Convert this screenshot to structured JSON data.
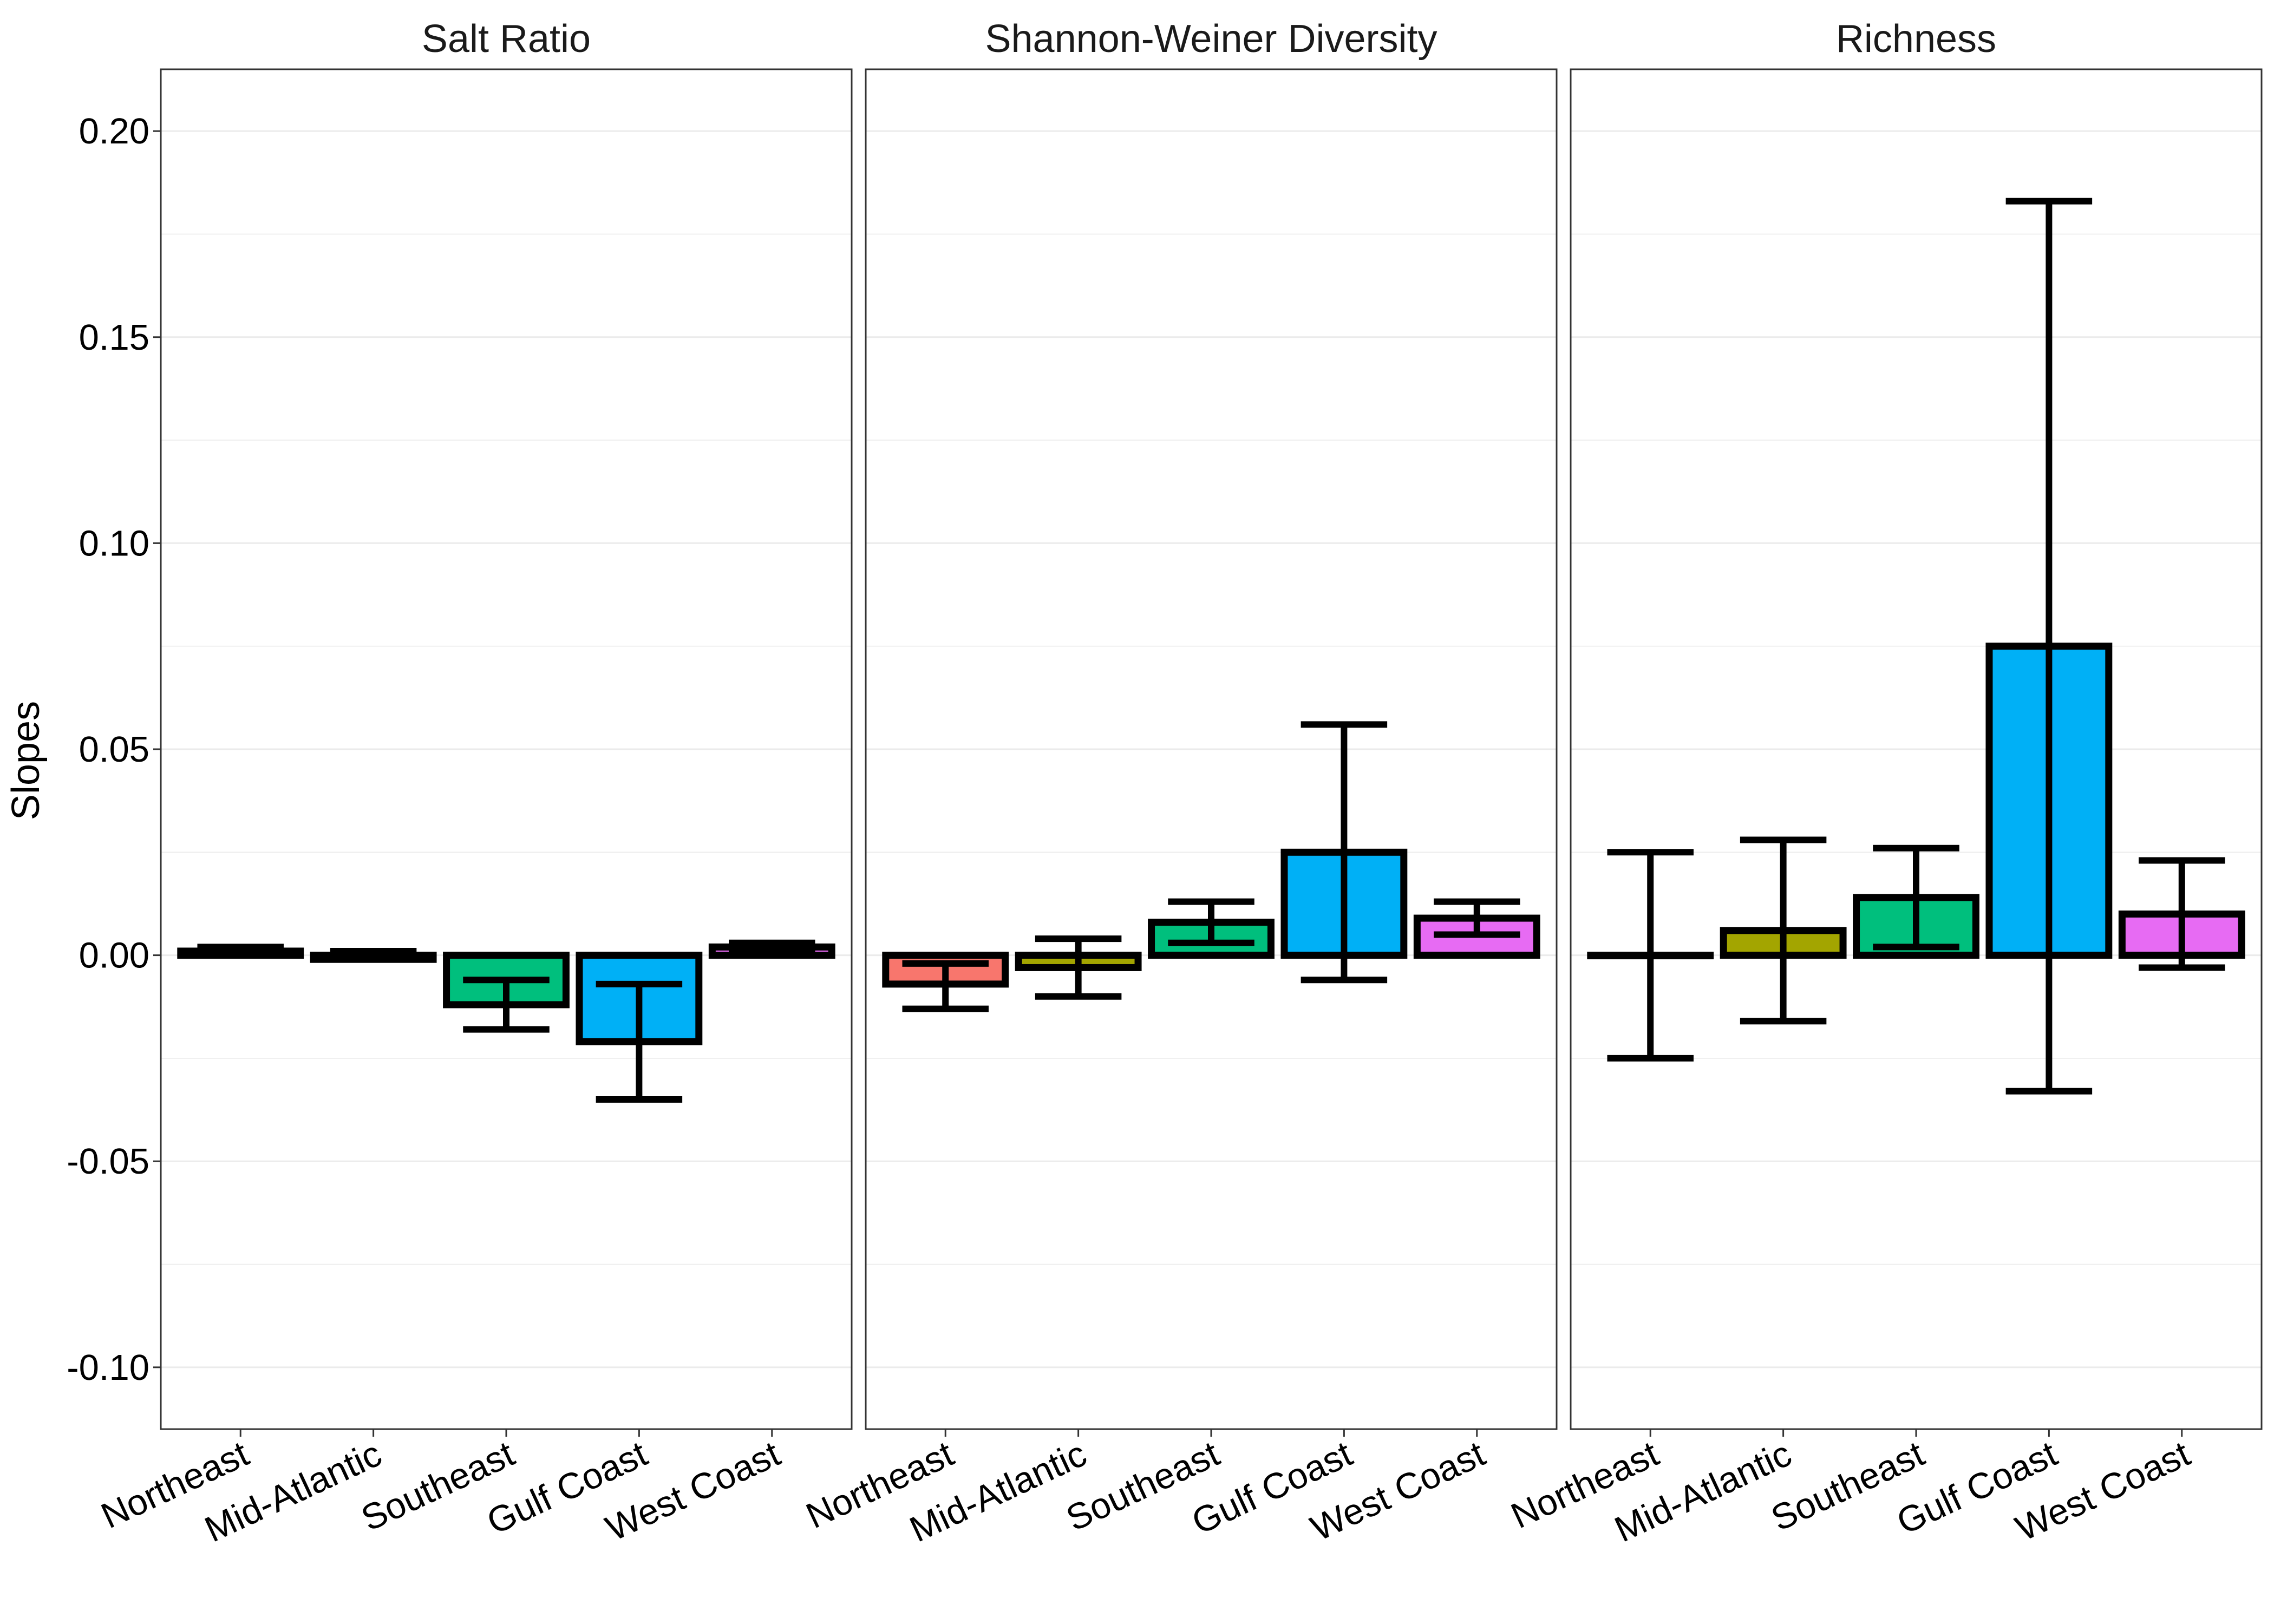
{
  "chart_data": {
    "type": "bar",
    "ylabel": "Slopes",
    "xlabel": "",
    "ylim": [
      -0.115,
      0.215
    ],
    "yticks": [
      -0.1,
      -0.05,
      0.0,
      0.05,
      0.1,
      0.15,
      0.2
    ],
    "ytick_labels": [
      "-0.10",
      "-0.05",
      "0.00",
      "0.05",
      "0.10",
      "0.15",
      "0.20"
    ],
    "grid": true,
    "legend": "none",
    "categories": [
      "Northeast",
      "Mid-Atlantic",
      "Southeast",
      "Gulf Coast",
      "West Coast"
    ],
    "category_colors": [
      "#F8766D",
      "#A3A500",
      "#00BF7D",
      "#00B0F6",
      "#E76BF3"
    ],
    "panels": [
      {
        "title": "Salt Ratio",
        "values": [
          0.001,
          -0.001,
          -0.012,
          -0.021,
          0.002
        ],
        "error_low": [
          0.0,
          -0.001,
          -0.018,
          -0.035,
          0.001
        ],
        "error_high": [
          0.002,
          0.001,
          -0.006,
          -0.007,
          0.003
        ]
      },
      {
        "title": "Shannon-Weiner Diversity",
        "values": [
          -0.007,
          -0.003,
          0.008,
          0.025,
          0.009
        ],
        "error_low": [
          -0.013,
          -0.01,
          0.003,
          -0.006,
          0.005
        ],
        "error_high": [
          -0.002,
          0.004,
          0.013,
          0.056,
          0.013
        ]
      },
      {
        "title": "Richness",
        "values": [
          0.0,
          0.006,
          0.014,
          0.075,
          0.01
        ],
        "error_low": [
          -0.025,
          -0.016,
          0.002,
          -0.033,
          -0.003
        ],
        "error_high": [
          0.025,
          0.028,
          0.026,
          0.183,
          0.023
        ]
      }
    ]
  }
}
